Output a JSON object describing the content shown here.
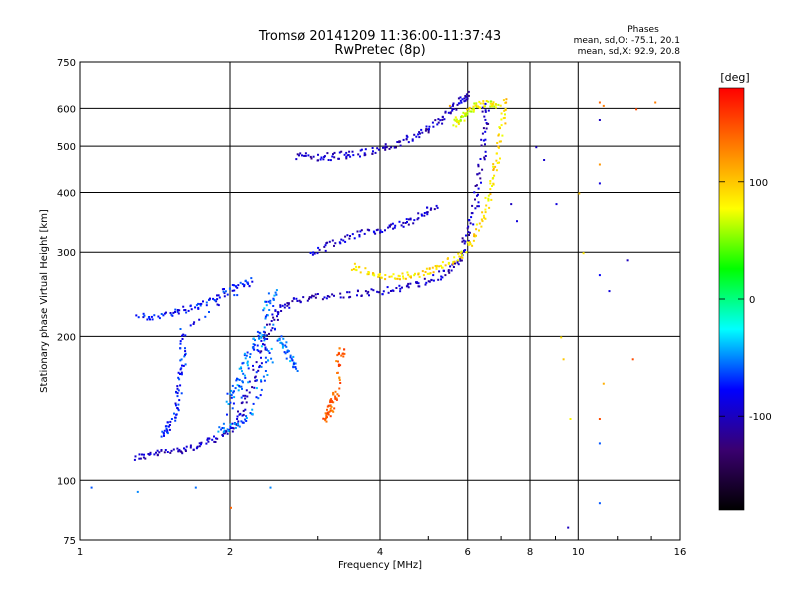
{
  "chart_data": {
    "type": "scatter",
    "title": "Tromsø 20141209 11:36:00-11:37:43",
    "subtitle": "RwPretec (8p)",
    "xlabel": "Frequency [MHz]",
    "ylabel": "Stationary phase Virtual Height [km]",
    "x_scale": "log",
    "y_scale": "log",
    "xlim": [
      1,
      16
    ],
    "ylim": [
      75,
      750
    ],
    "x_ticks": [
      "1",
      "2",
      "4",
      "6",
      "8",
      "10",
      "16"
    ],
    "y_ticks": [
      "75",
      "100",
      "200",
      "300",
      "400",
      "500",
      "600",
      "750"
    ],
    "grid": true,
    "phase_box": {
      "heading": "Phases",
      "line_o": "mean, sd,O: -75.1, 20.1",
      "line_x": "mean, sd,X:  92.9, 20.8"
    },
    "colorbar": {
      "unit": "[deg]",
      "ticks": [
        "100",
        "0",
        "-100"
      ],
      "range": [
        -180,
        180
      ],
      "colors": [
        "#000000",
        "#3a0070",
        "#0000ff",
        "#00ffff",
        "#00ff00",
        "#ffff00",
        "#ff8000",
        "#ff0000"
      ]
    },
    "traces": [
      {
        "name_hint": "o-lower",
        "phase": -100,
        "points": [
          [
            1.28,
            112
          ],
          [
            1.4,
            114
          ],
          [
            1.55,
            116
          ],
          [
            1.7,
            118
          ],
          [
            1.85,
            122
          ],
          [
            2.0,
            128
          ],
          [
            2.1,
            140
          ],
          [
            2.2,
            160
          ],
          [
            2.3,
            185
          ],
          [
            2.4,
            210
          ],
          [
            2.5,
            230
          ],
          [
            2.7,
            240
          ],
          [
            3.0,
            243
          ],
          [
            3.5,
            246
          ],
          [
            4.0,
            250
          ],
          [
            4.5,
            255
          ],
          [
            5.0,
            262
          ],
          [
            5.5,
            275
          ],
          [
            5.8,
            295
          ],
          [
            6.0,
            330
          ],
          [
            6.2,
            380
          ],
          [
            6.35,
            450
          ],
          [
            6.45,
            540
          ],
          [
            6.5,
            620
          ]
        ]
      },
      {
        "name_hint": "o-spread",
        "phase": -75,
        "points": [
          [
            1.3,
            220
          ],
          [
            1.45,
            222
          ],
          [
            1.6,
            228
          ],
          [
            1.75,
            235
          ],
          [
            1.9,
            245
          ],
          [
            2.05,
            255
          ],
          [
            2.2,
            262
          ],
          [
            1.6,
            205
          ],
          [
            1.6,
            180
          ],
          [
            1.58,
            160
          ],
          [
            1.55,
            140
          ],
          [
            1.5,
            130
          ],
          [
            1.45,
            125
          ]
        ]
      },
      {
        "name_hint": "cyan-diffuse",
        "phase": -55,
        "points": [
          [
            2.0,
            150
          ],
          [
            2.1,
            170
          ],
          [
            2.2,
            190
          ],
          [
            2.3,
            205
          ],
          [
            2.4,
            175
          ],
          [
            2.2,
            140
          ],
          [
            2.05,
            130
          ],
          [
            1.9,
            128
          ],
          [
            2.5,
            200
          ],
          [
            2.6,
            185
          ],
          [
            2.7,
            170
          ],
          [
            2.35,
            230
          ],
          [
            2.45,
            250
          ],
          [
            2.15,
            165
          ],
          [
            1.95,
            145
          ]
        ]
      },
      {
        "name_hint": "o-upper",
        "phase": -100,
        "points": [
          [
            2.7,
            480
          ],
          [
            3.0,
            475
          ],
          [
            3.3,
            480
          ],
          [
            3.6,
            485
          ],
          [
            4.0,
            495
          ],
          [
            4.4,
            510
          ],
          [
            4.8,
            535
          ],
          [
            5.2,
            565
          ],
          [
            5.5,
            595
          ],
          [
            5.8,
            630
          ],
          [
            6.0,
            650
          ]
        ]
      },
      {
        "name_hint": "x-lower",
        "phase": 90,
        "points": [
          [
            3.5,
            282
          ],
          [
            3.8,
            272
          ],
          [
            4.2,
            268
          ],
          [
            4.6,
            270
          ],
          [
            5.0,
            275
          ],
          [
            5.4,
            285
          ],
          [
            5.8,
            300
          ],
          [
            6.2,
            330
          ],
          [
            6.5,
            370
          ],
          [
            6.7,
            420
          ],
          [
            6.85,
            480
          ],
          [
            7.0,
            560
          ],
          [
            7.1,
            640
          ]
        ]
      },
      {
        "name_hint": "x-upper",
        "phase": 75,
        "points": [
          [
            5.6,
            560
          ],
          [
            5.8,
            575
          ],
          [
            6.0,
            590
          ],
          [
            6.2,
            610
          ],
          [
            6.6,
            620
          ],
          [
            6.9,
            600
          ]
        ]
      },
      {
        "name_hint": "orange-low",
        "phase": 140,
        "points": [
          [
            3.1,
            135
          ],
          [
            3.15,
            140
          ],
          [
            3.2,
            146
          ],
          [
            3.25,
            152
          ],
          [
            3.3,
            180
          ],
          [
            3.35,
            190
          ]
        ]
      },
      {
        "name_hint": "mid-layer",
        "phase": -95,
        "points": [
          [
            2.9,
            300
          ],
          [
            3.2,
            315
          ],
          [
            3.6,
            330
          ],
          [
            4.0,
            335
          ],
          [
            4.4,
            345
          ],
          [
            4.8,
            360
          ],
          [
            5.2,
            380
          ]
        ]
      }
    ],
    "scattered": [
      {
        "freq": 1.05,
        "h": 97,
        "phase": -60
      },
      {
        "freq": 1.3,
        "h": 95,
        "phase": -50
      },
      {
        "freq": 1.7,
        "h": 97,
        "phase": -55
      },
      {
        "freq": 2.0,
        "h": 88,
        "phase": 140
      },
      {
        "freq": 2.4,
        "h": 97,
        "phase": -50
      },
      {
        "freq": 5.5,
        "h": 610,
        "phase": 110
      },
      {
        "freq": 7.3,
        "h": 380,
        "phase": -100
      },
      {
        "freq": 7.5,
        "h": 350,
        "phase": -90
      },
      {
        "freq": 8.2,
        "h": 500,
        "phase": -100
      },
      {
        "freq": 8.5,
        "h": 470,
        "phase": -95
      },
      {
        "freq": 9.0,
        "h": 380,
        "phase": -90
      },
      {
        "freq": 9.2,
        "h": 200,
        "phase": 90
      },
      {
        "freq": 9.3,
        "h": 180,
        "phase": 100
      },
      {
        "freq": 9.5,
        "h": 80,
        "phase": -100
      },
      {
        "freq": 9.6,
        "h": 135,
        "phase": 80
      },
      {
        "freq": 10.0,
        "h": 400,
        "phase": 100
      },
      {
        "freq": 10.2,
        "h": 300,
        "phase": 85
      },
      {
        "freq": 11.0,
        "h": 620,
        "phase": 140
      },
      {
        "freq": 11.0,
        "h": 570,
        "phase": -100
      },
      {
        "freq": 11.0,
        "h": 460,
        "phase": 120
      },
      {
        "freq": 11.0,
        "h": 420,
        "phase": -90
      },
      {
        "freq": 11.0,
        "h": 270,
        "phase": -80
      },
      {
        "freq": 11.0,
        "h": 135,
        "phase": 150
      },
      {
        "freq": 11.0,
        "h": 120,
        "phase": -60
      },
      {
        "freq": 11.0,
        "h": 90,
        "phase": -60
      },
      {
        "freq": 11.5,
        "h": 250,
        "phase": -90
      },
      {
        "freq": 11.2,
        "h": 160,
        "phase": 110
      },
      {
        "freq": 12.5,
        "h": 290,
        "phase": -100
      },
      {
        "freq": 12.8,
        "h": 180,
        "phase": 150
      },
      {
        "freq": 13.0,
        "h": 600,
        "phase": 150
      },
      {
        "freq": 11.2,
        "h": 610,
        "phase": 130
      },
      {
        "freq": 14.2,
        "h": 620,
        "phase": 130
      }
    ]
  }
}
